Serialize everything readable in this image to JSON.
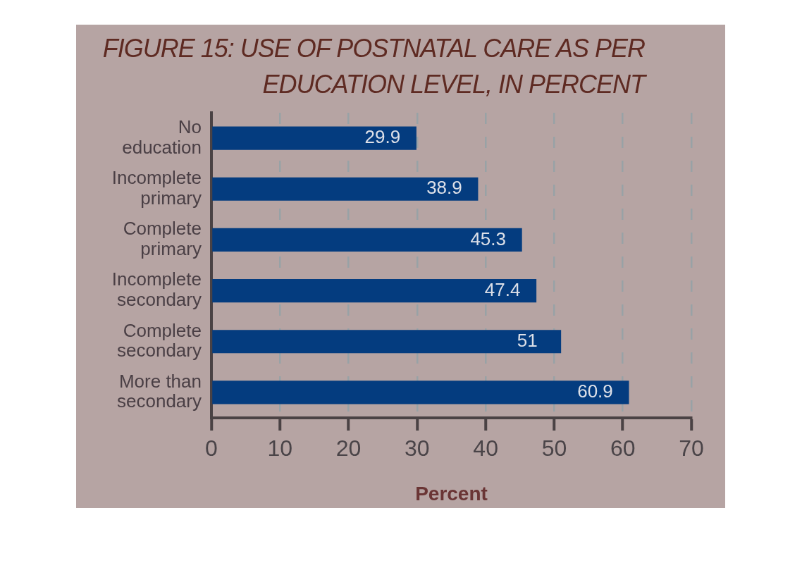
{
  "chart_data": {
    "type": "bar",
    "orientation": "horizontal",
    "title": "FIGURE 15: USE OF POSTNATAL CARE AS PER EDUCATION LEVEL, IN PERCENT",
    "xlabel": "Percent",
    "categories": [
      "No education",
      "Incomplete primary",
      "Complete primary",
      "Incomplete secondary",
      "Complete secondary",
      "More than secondary"
    ],
    "values": [
      29.9,
      38.9,
      45.3,
      47.4,
      51,
      60.9
    ],
    "color": "#043c7f",
    "xlim": [
      0,
      70
    ],
    "xticks": [
      0,
      10,
      20,
      30,
      40,
      50,
      60,
      70
    ],
    "grid": "x",
    "legend": false,
    "data_labels": true
  }
}
